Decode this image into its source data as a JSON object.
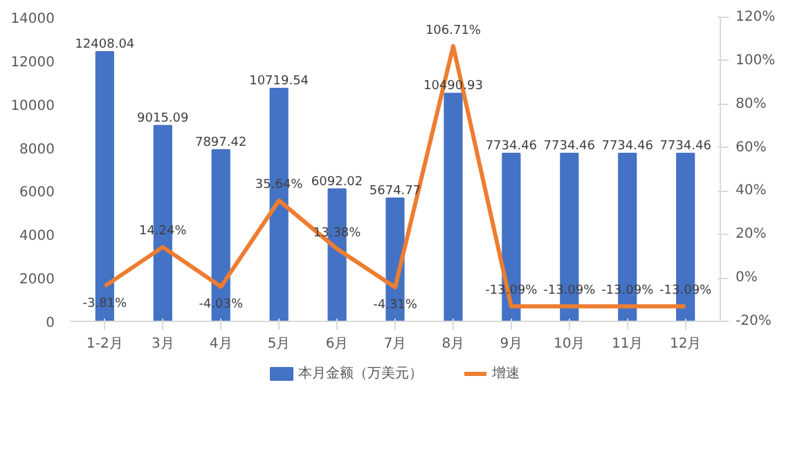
{
  "chart_data": {
    "type": "bar",
    "categories": [
      "1-2月",
      "3月",
      "4月",
      "5月",
      "6月",
      "7月",
      "8月",
      "9月",
      "10月",
      "11月",
      "12月"
    ],
    "series": [
      {
        "name": "本月金额（万美元）",
        "color": "#4472c4",
        "values": [
          12408.04,
          9015.09,
          7897.42,
          10719.54,
          6092.02,
          5674.77,
          10490.93,
          7734.46,
          7734.46,
          7734.46,
          7734.46
        ]
      },
      {
        "name": "增速",
        "type": "line",
        "axis": "y2",
        "color": "#ed7d31",
        "values": [
          -3.81,
          14.24,
          -4.03,
          35.64,
          13.38,
          -4.31,
          106.71,
          -13.09,
          -13.09,
          -13.09,
          -13.09
        ],
        "value_labels": [
          "-3.81%",
          "14.24%",
          "-4.03%",
          "35.64%",
          "13.38%",
          "-4.31%",
          "106.71%",
          "-13.09%",
          "-13.09%",
          "-13.09%",
          "-13.09%"
        ]
      }
    ],
    "data_labels": true,
    "ylim": [
      0,
      14000
    ],
    "yticks": [
      0,
      2000,
      4000,
      6000,
      8000,
      10000,
      12000,
      14000
    ],
    "y2lim": [
      -20,
      120
    ],
    "y2ticks": [
      {
        "value": -20,
        "label": "-20%"
      },
      {
        "value": 0,
        "label": "0%"
      },
      {
        "value": 20,
        "label": "20%"
      },
      {
        "value": 40,
        "label": "40%"
      },
      {
        "value": 60,
        "label": "60%"
      },
      {
        "value": 80,
        "label": "80%"
      },
      {
        "value": 100,
        "label": "100%"
      },
      {
        "value": 120,
        "label": "120%"
      }
    ],
    "grid": false,
    "legend": "bottom",
    "line_style": "solid",
    "marker": "none"
  }
}
